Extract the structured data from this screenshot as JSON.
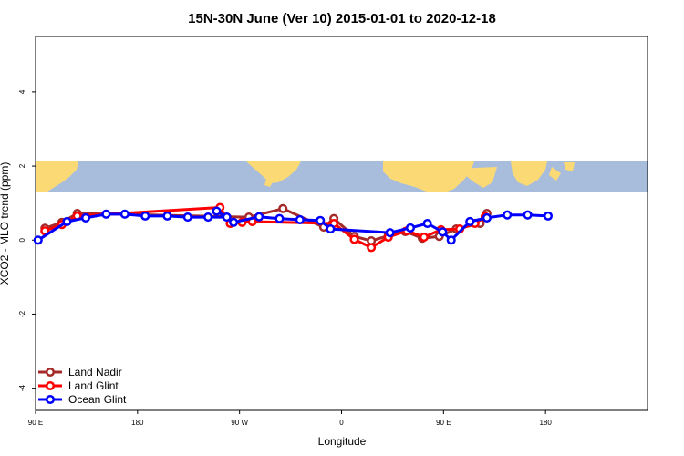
{
  "chart_data": {
    "type": "line",
    "title": "15N-30N June (Ver 10)   2015-01-01 to 2020-12-18",
    "xlabel": "Longitude",
    "ylabel": "XCO2 - MLO trend (ppm)",
    "xlim": [
      -90,
      270
    ],
    "ylim": [
      -4.6,
      5.5
    ],
    "x_ticks": [
      {
        "value": -90,
        "label": "90 E"
      },
      {
        "value": -30,
        "label": "180"
      },
      {
        "value": 30,
        "label": "90 W"
      },
      {
        "value": 90,
        "label": "0"
      },
      {
        "value": 150,
        "label": "90 E"
      },
      {
        "value": 210,
        "label": "180"
      }
    ],
    "y_ticks": [
      {
        "value": -4,
        "label": "-4"
      },
      {
        "value": -2,
        "label": "-2"
      },
      {
        "value": 0,
        "label": "0"
      },
      {
        "value": 2,
        "label": "2"
      },
      {
        "value": 4,
        "label": "4"
      }
    ],
    "legend_position": "bottom-left",
    "series": [
      {
        "name": "Land Nadir",
        "color": "#a52a2a",
        "points": [
          [
            -84.5,
            0.32
          ],
          [
            -74.5,
            0.48
          ],
          [
            -65.5,
            0.72
          ],
          [
            35.5,
            0.62
          ],
          [
            55.5,
            0.85
          ],
          [
            79.5,
            0.35
          ],
          [
            85.5,
            0.58
          ],
          [
            97.5,
            0.1
          ],
          [
            107.5,
            -0.02
          ],
          [
            117.5,
            0.12
          ],
          [
            127.5,
            0.23
          ],
          [
            137.5,
            0.05
          ],
          [
            147.5,
            0.1
          ],
          [
            157.5,
            0.3
          ],
          [
            171.5,
            0.45
          ],
          [
            175.5,
            0.72
          ]
        ]
      },
      {
        "name": "Land Glint",
        "color": "#ff0000",
        "points": [
          [
            -84.5,
            0.25
          ],
          [
            -74.5,
            0.42
          ],
          [
            -65.5,
            0.65
          ],
          [
            18.5,
            0.88
          ],
          [
            24.5,
            0.45
          ],
          [
            31.5,
            0.48
          ],
          [
            37.5,
            0.5
          ],
          [
            85.5,
            0.45
          ],
          [
            97.5,
            0.02
          ],
          [
            107.5,
            -0.2
          ],
          [
            117.5,
            0.08
          ],
          [
            128.5,
            0.25
          ],
          [
            138.5,
            0.08
          ],
          [
            148.5,
            0.28
          ],
          [
            159.5,
            0.3
          ],
          [
            168.5,
            0.45
          ],
          [
            174.5,
            0.63
          ]
        ]
      },
      {
        "name": "Ocean Glint",
        "color": "#0000ff",
        "points": [
          [
            -88.5,
            0.0
          ],
          [
            -71.5,
            0.5
          ],
          [
            -60.5,
            0.6
          ],
          [
            -48.5,
            0.7
          ],
          [
            -37.5,
            0.7
          ],
          [
            -25.5,
            0.65
          ],
          [
            -12.5,
            0.65
          ],
          [
            -0.5,
            0.62
          ],
          [
            11.5,
            0.62
          ],
          [
            22.5,
            0.62
          ],
          [
            16.5,
            0.78
          ],
          [
            26.5,
            0.48
          ],
          [
            41.5,
            0.63
          ],
          [
            53.5,
            0.58
          ],
          [
            65.5,
            0.55
          ],
          [
            77.5,
            0.53
          ],
          [
            83.5,
            0.3
          ],
          [
            118.5,
            0.2
          ],
          [
            130.5,
            0.33
          ],
          [
            140.5,
            0.45
          ],
          [
            149.5,
            0.22
          ],
          [
            154.5,
            0.0
          ],
          [
            165.5,
            0.5
          ],
          [
            175.5,
            0.6
          ],
          [
            187.5,
            0.68
          ],
          [
            199.5,
            0.68
          ],
          [
            211.5,
            0.65
          ]
        ]
      }
    ]
  }
}
